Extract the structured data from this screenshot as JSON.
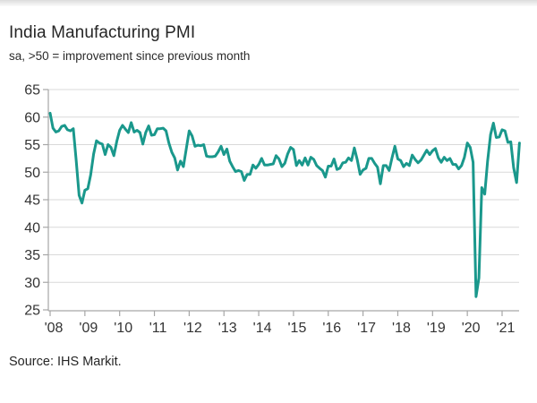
{
  "header": {
    "title": "India Manufacturing PMI",
    "subtitle": "sa, >50 = improvement since previous month"
  },
  "footer": {
    "source": "Source: IHS Markit."
  },
  "colors": {
    "line": "#1a988c",
    "grid": "#d9d9d9",
    "axis": "#a6a6a6",
    "tick_text": "#333333"
  },
  "chart_data": {
    "type": "line",
    "title": "India Manufacturing PMI",
    "subtitle": "sa, >50 = improvement since previous month",
    "source": "Source: IHS Markit.",
    "x_unit": "month",
    "x_range": [
      "2008-01",
      "2021-07"
    ],
    "x_tick_labels": [
      "'08",
      "'09",
      "'10",
      "'11",
      "'12",
      "'13",
      "'14",
      "'15",
      "'16",
      "'17",
      "'18",
      "'19",
      "'20",
      "'21"
    ],
    "y_ticks": [
      65,
      60,
      55,
      50,
      45,
      40,
      35,
      30,
      25
    ],
    "ylim": [
      25,
      65
    ],
    "grid": "horizontal",
    "legend": "none",
    "series": [
      {
        "name": "India Manufacturing PMI (sa)",
        "monthly_values": [
          60.7,
          58.0,
          57.3,
          57.5,
          58.3,
          58.5,
          57.7,
          57.5,
          57.9,
          52.2,
          45.8,
          44.4,
          46.7,
          47.0,
          49.5,
          53.3,
          55.7,
          55.3,
          55.1,
          53.2,
          55.0,
          54.5,
          53.0,
          55.6,
          57.6,
          58.5,
          57.8,
          57.2,
          59.0,
          57.3,
          57.6,
          57.2,
          55.1,
          57.2,
          58.4,
          56.7,
          56.8,
          57.9,
          57.9,
          58.0,
          57.5,
          55.3,
          53.6,
          52.6,
          50.4,
          52.0,
          51.0,
          54.2,
          57.5,
          56.6,
          54.7,
          54.9,
          54.8,
          55.0,
          52.9,
          52.8,
          52.8,
          52.9,
          53.7,
          54.7,
          53.2,
          54.2,
          52.0,
          51.0,
          50.1,
          50.3,
          50.1,
          48.5,
          49.6,
          49.6,
          51.3,
          50.7,
          51.4,
          52.5,
          51.3,
          51.3,
          51.4,
          51.5,
          53.0,
          52.4,
          51.0,
          51.6,
          53.3,
          54.5,
          54.1,
          51.2,
          52.1,
          51.3,
          52.6,
          51.3,
          52.7,
          52.3,
          51.2,
          50.7,
          50.3,
          49.1,
          51.1,
          51.1,
          52.4,
          50.5,
          50.7,
          51.7,
          51.8,
          52.6,
          52.1,
          54.4,
          52.3,
          49.6,
          50.4,
          50.7,
          52.5,
          52.5,
          51.6,
          50.9,
          47.9,
          51.2,
          51.2,
          50.3,
          52.6,
          54.7,
          52.4,
          52.1,
          51.0,
          51.6,
          51.2,
          53.1,
          52.3,
          51.7,
          52.2,
          53.1,
          54.0,
          53.2,
          53.9,
          54.3,
          52.6,
          51.8,
          52.7,
          52.1,
          52.5,
          51.4,
          51.4,
          50.6,
          51.2,
          52.7,
          55.3,
          54.5,
          51.8,
          27.4,
          30.8,
          47.2,
          46.0,
          52.0,
          56.8,
          58.9,
          56.3,
          56.4,
          57.7,
          57.5,
          55.4,
          55.5,
          50.8,
          48.1,
          55.3
        ]
      }
    ]
  }
}
